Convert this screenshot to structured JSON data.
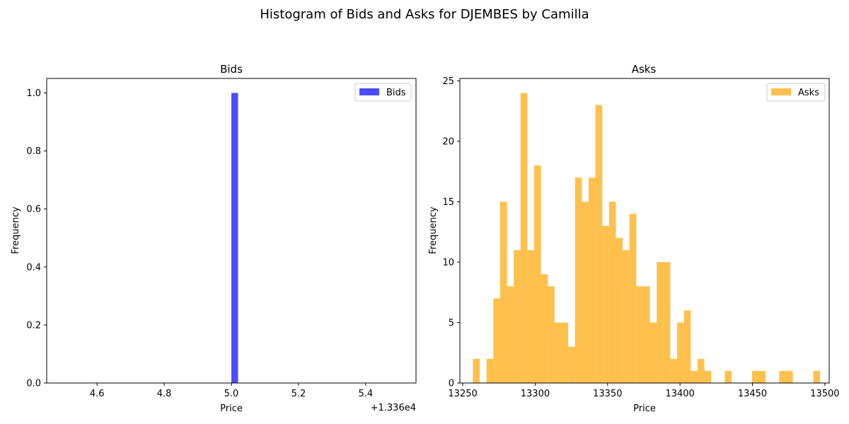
{
  "figure": {
    "title": "Histogram of Bids and Asks for DJEMBES by Camilla"
  },
  "chart_data": [
    {
      "type": "bar",
      "title": "Bids",
      "xlabel": "Price",
      "ylabel": "Frequency",
      "color": "#0000ff",
      "alpha": 0.7,
      "legend": {
        "label": "Bids",
        "position": "top-right"
      },
      "x_offset_label": "+1.336e4",
      "xlim": [
        4.45,
        5.55
      ],
      "ylim": [
        0,
        1.05
      ],
      "xticks": [
        4.6,
        4.8,
        5.0,
        5.2,
        5.4
      ],
      "xtick_labels": [
        "4.6",
        "4.8",
        "5.0",
        "5.2",
        "5.4"
      ],
      "yticks": [
        0,
        0.2,
        0.4,
        0.6,
        0.8,
        1.0
      ],
      "ytick_labels": [
        "0.0",
        "0.2",
        "0.4",
        "0.6",
        "0.8",
        "1.0"
      ],
      "bins": [
        {
          "x0": 5.0,
          "x1": 5.02,
          "value": 1
        }
      ],
      "grid": false
    },
    {
      "type": "bar",
      "title": "Asks",
      "xlabel": "Price",
      "ylabel": "Frequency",
      "color": "#ffa500",
      "alpha": 0.7,
      "legend": {
        "label": "Asks",
        "position": "top-right"
      },
      "xlim": [
        13248,
        13503
      ],
      "ylim": [
        0,
        25.2
      ],
      "xticks": [
        13250,
        13300,
        13350,
        13400,
        13450,
        13500
      ],
      "xtick_labels": [
        "13250",
        "13300",
        "13350",
        "13400",
        "13450",
        "13500"
      ],
      "yticks": [
        0,
        5,
        10,
        15,
        20,
        25
      ],
      "ytick_labels": [
        "0",
        "5",
        "10",
        "15",
        "20",
        "25"
      ],
      "bin_start": 13257,
      "bin_width": 4.7,
      "values": [
        2,
        0,
        2,
        7,
        15,
        8,
        11,
        24,
        11,
        18,
        9,
        8,
        5,
        5,
        3,
        17,
        15,
        17,
        23,
        13,
        15,
        12,
        11,
        14,
        8,
        8,
        5,
        10,
        10,
        2,
        5,
        6,
        1,
        2,
        1,
        0,
        0,
        1,
        0,
        0,
        0,
        1,
        1,
        0,
        0,
        1,
        1,
        0,
        0,
        0,
        1
      ],
      "grid": false
    }
  ]
}
